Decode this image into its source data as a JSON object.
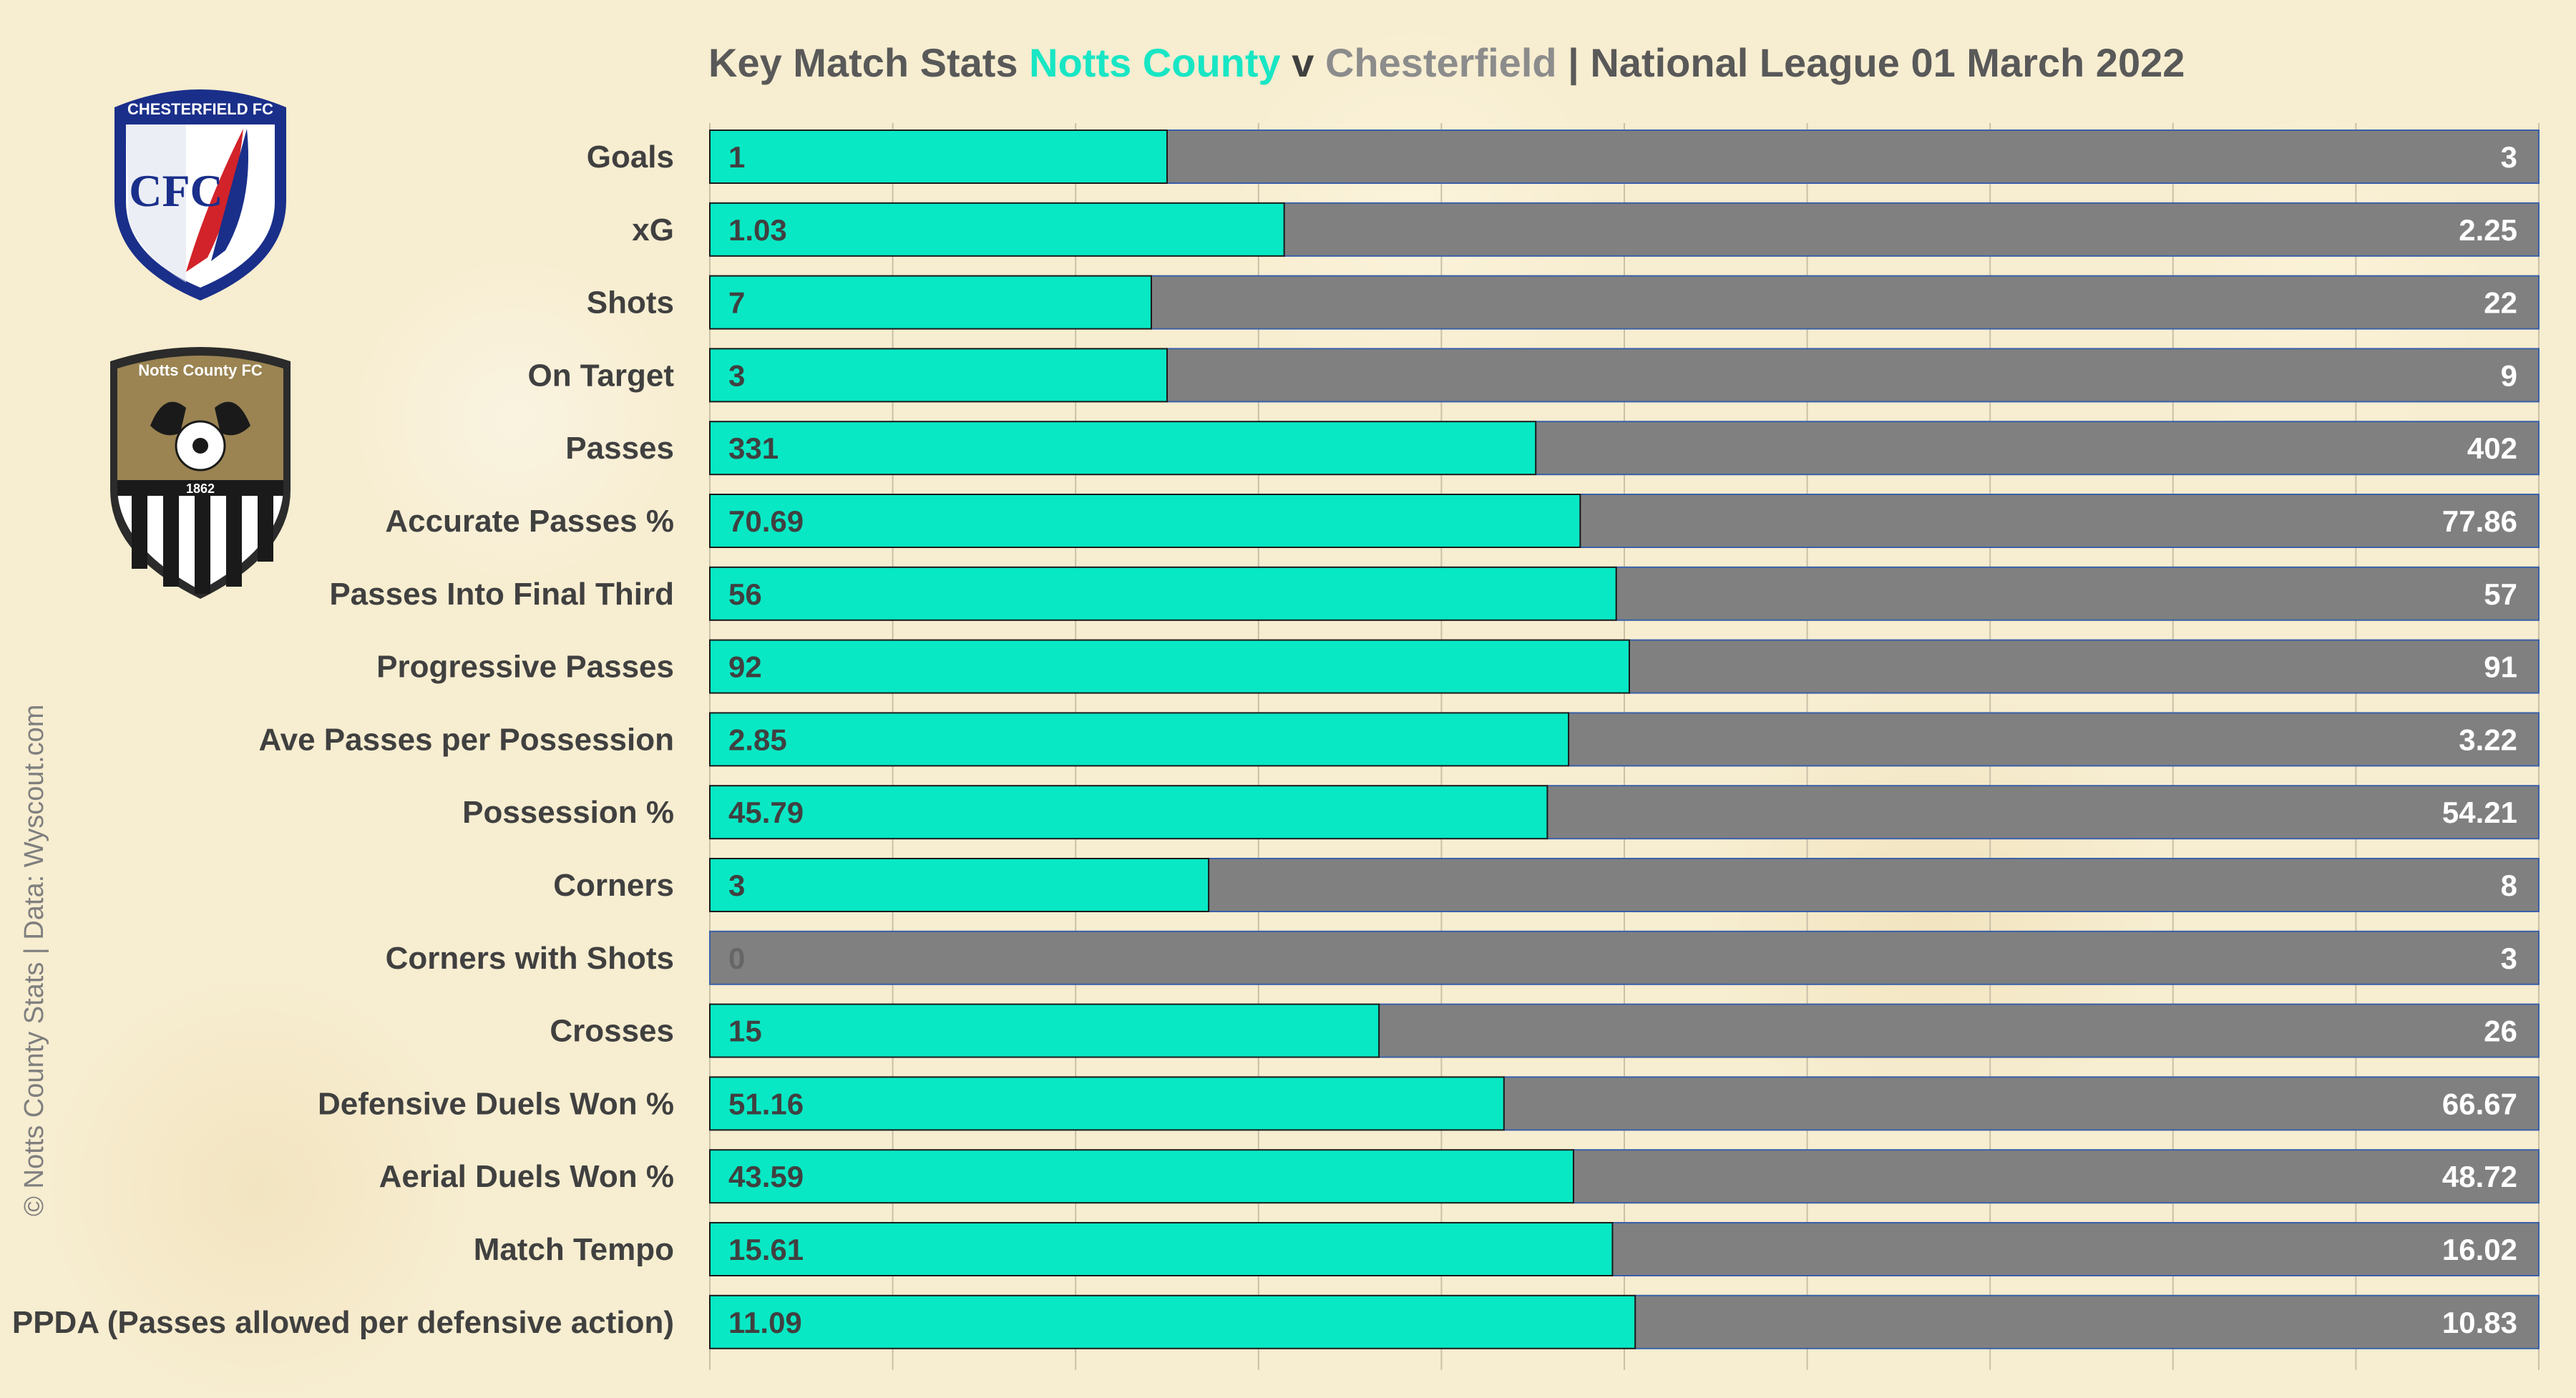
{
  "title": {
    "prefix": "Key Match Stats",
    "home": "Notts County",
    "v": "v",
    "away": "Chesterfield",
    "suffix": "| National League 01 March 2022"
  },
  "credit": "© Notts County Stats | Data: Wyscout.com",
  "logos": {
    "chesterfield_text": "CHESTERFIELD FC",
    "chesterfield_monogram": "CFC",
    "notts_text": "Notts County FC",
    "notts_year": "1862"
  },
  "colors": {
    "home": "#08e8c4",
    "away": "#808080",
    "home_text": "#404040",
    "away_text": "#ffffff",
    "zero_text": "#666666",
    "grid": "#c9c0a8"
  },
  "chart_data": {
    "type": "bar",
    "stacked": "percent",
    "orientation": "horizontal",
    "title": "Key Match Stats Notts County v Chesterfield | National League 01 March 2022",
    "categories": [
      "Goals",
      "xG",
      "Shots",
      "On Target",
      "Passes",
      "Accurate Passes %",
      "Passes Into Final Third",
      "Progressive Passes",
      "Ave Passes per Possession",
      "Possession %",
      "Corners",
      "Corners with Shots",
      "Crosses",
      "Defensive Duels Won %",
      "Aerial Duels Won %",
      "Match Tempo",
      "PPDA (Passes allowed per defensive action)"
    ],
    "series": [
      {
        "name": "Notts County",
        "values": [
          1,
          1.03,
          7,
          3,
          331,
          70.69,
          56,
          92,
          2.85,
          45.79,
          3,
          0,
          15,
          51.16,
          43.59,
          15.61,
          11.09
        ],
        "labels": [
          "1",
          "1.03",
          "7",
          "3",
          "331",
          "70.69",
          "56",
          "92",
          "2.85",
          "45.79",
          "3",
          "0",
          "15",
          "51.16",
          "43.59",
          "15.61",
          "11.09"
        ]
      },
      {
        "name": "Chesterfield",
        "values": [
          3,
          2.25,
          22,
          9,
          402,
          77.86,
          57,
          91,
          3.22,
          54.21,
          8,
          3,
          26,
          66.67,
          48.72,
          16.02,
          10.83
        ],
        "labels": [
          "3",
          "2.25",
          "22",
          "9",
          "402",
          "77.86",
          "57",
          "91",
          "3.22",
          "54.21",
          "8",
          "3",
          "26",
          "66.67",
          "48.72",
          "16.02",
          "10.83"
        ]
      }
    ],
    "grid": true
  }
}
